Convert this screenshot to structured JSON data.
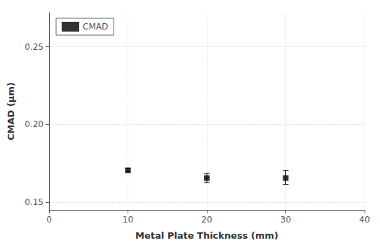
{
  "chart_data": {
    "type": "scatter",
    "xlabel": "Metal Plate Thickness (mm)",
    "ylabel": "CMAD (μm)",
    "x": [
      10,
      20,
      30
    ],
    "series": [
      {
        "name": "CMAD",
        "color": "#000000",
        "marker": "square",
        "values": [
          0.1705,
          0.1655,
          0.1655
        ],
        "yerr_low": [
          0.001,
          0.003,
          0.004
        ],
        "yerr_high": [
          0.001,
          0.003,
          0.005
        ]
      }
    ],
    "xlim": [
      0,
      40
    ],
    "xticks": [
      0,
      10,
      20,
      30,
      40
    ],
    "ylim": [
      0.145,
      0.272
    ],
    "yticks": [
      0.15,
      {
        "value": 0.2,
        "label": "0.20"
      },
      0.25
    ],
    "grid": true,
    "legend": "upper left"
  }
}
